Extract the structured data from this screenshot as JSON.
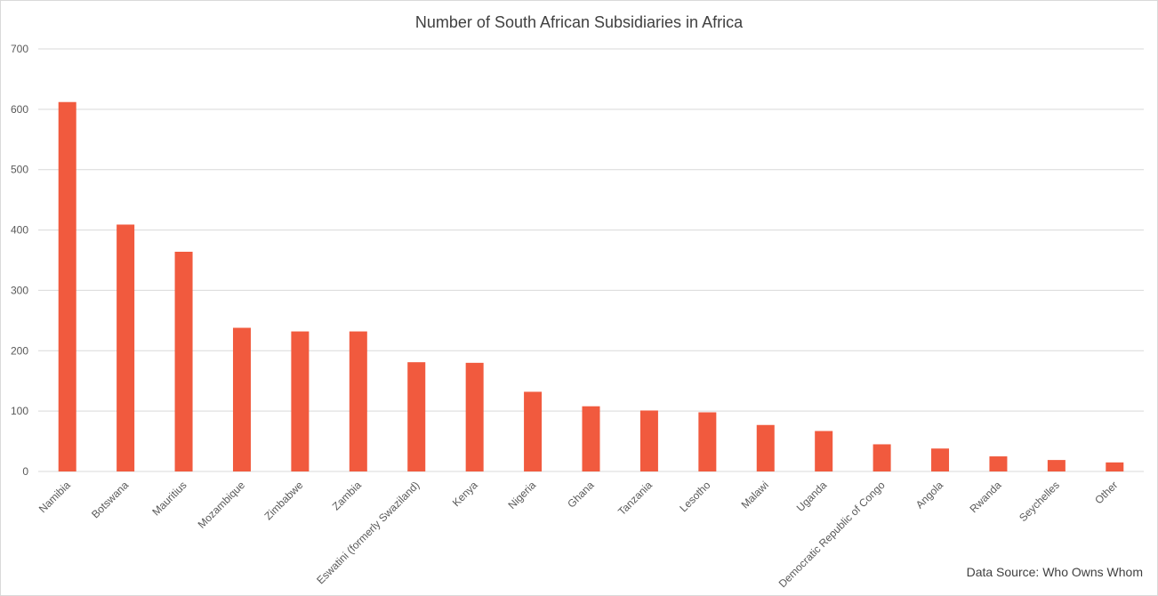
{
  "chart_data": {
    "type": "bar",
    "title": "Number of South African Subsidiaries in Africa",
    "source": "Data Source: Who Owns Whom",
    "categories": [
      "Namibia",
      "Botswana",
      "Mauritius",
      "Mozambique",
      "Zimbabwe",
      "Zambia",
      "Eswatini (formerly Swaziland)",
      "Kenya",
      "Nigeria",
      "Ghana",
      "Tanzania",
      "Lesotho",
      "Malawi",
      "Uganda",
      "Democratic Republic of Congo",
      "Angola",
      "Rwanda",
      "Seychelles",
      "Other"
    ],
    "values": [
      612,
      409,
      364,
      238,
      232,
      232,
      181,
      180,
      132,
      108,
      101,
      98,
      77,
      67,
      45,
      38,
      25,
      19,
      15
    ],
    "yticks": [
      "0",
      "100",
      "200",
      "300",
      "400",
      "500",
      "600",
      "700"
    ],
    "ylim": [
      0,
      700
    ],
    "grid": true,
    "legend": "none",
    "bar_color": "#f15a3e",
    "grid_color": "#d9d9d9"
  }
}
